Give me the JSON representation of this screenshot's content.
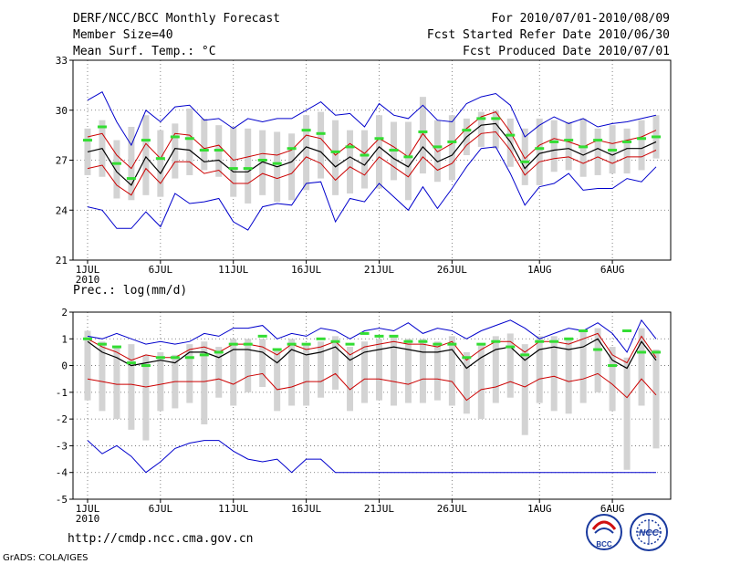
{
  "header": {
    "title": "DERF/NCC/BCC Monthly Forecast",
    "member_size": "Member Size=40",
    "variable": "Mean Surf. Temp.: °C",
    "period": "For 2010/07/01-2010/08/09",
    "started": "Fcst Started Refer Date 2010/06/30",
    "produced": "Fcst Produced Date 2010/07/01"
  },
  "footer": {
    "url": "http://cmdp.ncc.cma.gov.cn",
    "grads": "GrADS: COLA/IGES",
    "logo_bcc": "BCC",
    "logo_ncc": "NCC"
  },
  "colors": {
    "spread_max_min": "#0000cc",
    "spread_sd": "#cc0000",
    "mean": "#000000",
    "box": "#d3d3d3",
    "climate": "#33dd33",
    "grid": "#666666"
  },
  "chart_data": [
    {
      "type": "line",
      "panel": "temperature",
      "title": "Mean Surf. Temp.: °C",
      "x": [
        1,
        2,
        3,
        4,
        5,
        6,
        7,
        8,
        9,
        10,
        11,
        12,
        13,
        14,
        15,
        16,
        17,
        18,
        19,
        20,
        21,
        22,
        23,
        24,
        25,
        26,
        27,
        28,
        29,
        30,
        31,
        32,
        33,
        34,
        35,
        36,
        37,
        38,
        39,
        40
      ],
      "xtick_days": [
        1,
        6,
        11,
        16,
        21,
        26,
        32,
        37
      ],
      "xtick_labels": [
        "1JUL",
        "6JUL",
        "11JUL",
        "16JUL",
        "21JUL",
        "26JUL",
        "1AUG",
        "6AUG"
      ],
      "xlabel_year": "2010",
      "ylim": [
        21,
        33
      ],
      "yticks": [
        21,
        24,
        27,
        30,
        33
      ],
      "ytick_labels": [
        "21",
        "24",
        "27",
        "30",
        "33"
      ],
      "series": [
        {
          "name": "max",
          "values": [
            30.6,
            31.1,
            29.3,
            27.9,
            30.0,
            29.3,
            30.2,
            30.3,
            29.4,
            29.5,
            28.9,
            29.5,
            29.3,
            29.5,
            29.5,
            30.0,
            30.5,
            29.7,
            29.8,
            29.0,
            30.4,
            29.7,
            29.5,
            30.3,
            29.4,
            29.3,
            30.4,
            30.8,
            31.0,
            30.3,
            28.4,
            29.1,
            29.6,
            29.2,
            29.5,
            29.0,
            29.2,
            29.3,
            29.5,
            29.7
          ]
        },
        {
          "name": "mean_plus_sd",
          "values": [
            28.4,
            28.6,
            27.3,
            26.5,
            28.0,
            27.1,
            28.6,
            28.5,
            27.7,
            27.9,
            27.0,
            27.2,
            27.4,
            27.3,
            27.6,
            28.5,
            28.3,
            27.3,
            28.0,
            27.4,
            28.3,
            27.8,
            27.2,
            28.6,
            27.5,
            28.0,
            28.9,
            29.6,
            29.9,
            28.7,
            27.1,
            27.9,
            28.3,
            28.1,
            27.8,
            28.2,
            28.0,
            28.2,
            28.4,
            28.8
          ]
        },
        {
          "name": "mean",
          "values": [
            27.5,
            27.7,
            26.3,
            25.5,
            27.2,
            26.2,
            27.7,
            27.6,
            26.9,
            27.0,
            26.3,
            26.3,
            26.9,
            26.6,
            26.9,
            27.8,
            27.5,
            26.6,
            27.2,
            26.7,
            27.8,
            27.1,
            26.6,
            27.8,
            26.9,
            27.3,
            28.4,
            29.1,
            29.2,
            28.1,
            26.5,
            27.4,
            27.6,
            27.7,
            27.3,
            27.7,
            27.3,
            27.7,
            27.7,
            28.1
          ]
        },
        {
          "name": "mean_minus_sd",
          "values": [
            26.5,
            26.7,
            25.5,
            24.9,
            26.5,
            25.6,
            26.9,
            26.9,
            26.2,
            26.4,
            25.6,
            25.6,
            26.2,
            25.9,
            26.2,
            27.2,
            26.8,
            25.8,
            26.6,
            26.1,
            27.2,
            26.6,
            26.0,
            27.2,
            26.4,
            26.8,
            27.9,
            28.6,
            28.7,
            27.6,
            26.1,
            26.9,
            27.1,
            27.2,
            26.8,
            27.2,
            26.8,
            27.2,
            27.2,
            27.6
          ]
        },
        {
          "name": "min",
          "values": [
            24.2,
            24.0,
            22.9,
            22.9,
            23.9,
            23.0,
            25.0,
            24.4,
            24.5,
            24.7,
            23.3,
            22.8,
            24.2,
            24.4,
            24.3,
            25.6,
            25.7,
            23.3,
            24.7,
            24.5,
            25.6,
            24.8,
            24.0,
            25.4,
            24.1,
            25.3,
            26.6,
            27.7,
            27.8,
            26.2,
            24.3,
            25.4,
            25.6,
            26.2,
            25.2,
            25.3,
            25.3,
            25.9,
            25.7,
            26.6
          ]
        },
        {
          "name": "box_high",
          "values": [
            28.9,
            29.4,
            28.2,
            29.0,
            29.7,
            28.8,
            29.2,
            30.1,
            29.5,
            29.1,
            29.0,
            28.9,
            28.8,
            28.7,
            28.6,
            29.7,
            29.9,
            29.4,
            28.8,
            28.8,
            29.7,
            29.3,
            29.3,
            30.8,
            29.4,
            29.7,
            29.5,
            29.9,
            30.0,
            29.5,
            28.9,
            29.5,
            29.4,
            29.3,
            29.5,
            28.9,
            29.1,
            28.9,
            29.4,
            29.7
          ]
        },
        {
          "name": "box_low",
          "values": [
            26.1,
            26.0,
            24.7,
            24.6,
            24.9,
            24.8,
            25.9,
            26.1,
            26.4,
            26.0,
            24.8,
            24.4,
            24.9,
            24.5,
            24.6,
            25.2,
            25.9,
            24.9,
            25.0,
            25.3,
            25.3,
            25.8,
            24.6,
            26.2,
            25.7,
            25.8,
            27.3,
            27.8,
            27.7,
            26.6,
            25.5,
            25.5,
            26.3,
            26.4,
            26.0,
            26.1,
            26.2,
            26.2,
            26.4,
            27.1
          ]
        },
        {
          "name": "climate",
          "values": [
            28.2,
            29.0,
            26.8,
            25.9,
            28.2,
            27.1,
            28.4,
            28.3,
            27.6,
            27.6,
            26.5,
            26.5,
            27.0,
            26.8,
            27.7,
            28.8,
            28.6,
            27.5,
            27.8,
            27.3,
            28.3,
            27.6,
            27.2,
            28.7,
            27.8,
            28.1,
            28.8,
            29.5,
            29.5,
            28.5,
            26.9,
            27.7,
            28.1,
            28.2,
            27.8,
            28.2,
            27.6,
            28.1,
            28.3,
            28.4
          ]
        }
      ]
    },
    {
      "type": "line",
      "panel": "precipitation",
      "title": "Prec.: log(mm/d)",
      "x": [
        1,
        2,
        3,
        4,
        5,
        6,
        7,
        8,
        9,
        10,
        11,
        12,
        13,
        14,
        15,
        16,
        17,
        18,
        19,
        20,
        21,
        22,
        23,
        24,
        25,
        26,
        27,
        28,
        29,
        30,
        31,
        32,
        33,
        34,
        35,
        36,
        37,
        38,
        39,
        40
      ],
      "xtick_days": [
        1,
        6,
        11,
        16,
        21,
        26,
        32,
        37
      ],
      "xtick_labels": [
        "1JUL",
        "6JUL",
        "11JUL",
        "16JUL",
        "21JUL",
        "26JUL",
        "1AUG",
        "6AUG"
      ],
      "xlabel_year": "2010",
      "ylim": [
        -5,
        2
      ],
      "yticks": [
        -5,
        -4,
        -3,
        -2,
        -1,
        0,
        1,
        2
      ],
      "ytick_labels": [
        "-5",
        "-4",
        "-3",
        "-2",
        "-1",
        "0",
        "1",
        "2"
      ],
      "series": [
        {
          "name": "max",
          "values": [
            1.1,
            1.0,
            1.2,
            1.0,
            0.8,
            0.9,
            0.8,
            0.9,
            1.2,
            1.1,
            1.4,
            1.4,
            1.5,
            1.0,
            1.2,
            1.1,
            1.4,
            1.3,
            1.0,
            1.3,
            1.4,
            1.3,
            1.6,
            1.2,
            1.4,
            1.3,
            1.0,
            1.3,
            1.5,
            1.7,
            1.4,
            1.0,
            1.2,
            1.4,
            1.3,
            1.6,
            1.2,
            0.5,
            1.7,
            1.0
          ]
        },
        {
          "name": "mean_plus_sd",
          "values": [
            1.0,
            0.7,
            0.5,
            0.2,
            0.4,
            0.3,
            0.3,
            0.6,
            0.7,
            0.5,
            0.8,
            0.8,
            0.7,
            0.4,
            0.8,
            0.6,
            0.7,
            0.9,
            0.4,
            0.7,
            0.8,
            0.9,
            0.8,
            0.8,
            0.7,
            0.9,
            0.2,
            0.6,
            0.9,
            0.9,
            0.5,
            0.9,
            0.9,
            0.8,
            1.0,
            1.2,
            0.4,
            0.1,
            1.1,
            0.3
          ]
        },
        {
          "name": "mean",
          "values": [
            0.9,
            0.5,
            0.3,
            0.0,
            0.1,
            0.2,
            0.1,
            0.5,
            0.5,
            0.3,
            0.6,
            0.6,
            0.5,
            0.1,
            0.6,
            0.4,
            0.5,
            0.7,
            0.2,
            0.5,
            0.6,
            0.7,
            0.6,
            0.5,
            0.5,
            0.6,
            -0.1,
            0.3,
            0.6,
            0.7,
            0.2,
            0.6,
            0.7,
            0.6,
            0.7,
            1.0,
            0.2,
            -0.1,
            0.9,
            0.2
          ]
        },
        {
          "name": "mean_minus_sd",
          "values": [
            -0.5,
            -0.6,
            -0.7,
            -0.7,
            -0.8,
            -0.7,
            -0.6,
            -0.6,
            -0.6,
            -0.5,
            -0.7,
            -0.4,
            -0.3,
            -0.9,
            -0.8,
            -0.6,
            -0.6,
            -0.3,
            -0.9,
            -0.5,
            -0.5,
            -0.6,
            -0.7,
            -0.5,
            -0.5,
            -0.6,
            -1.3,
            -0.9,
            -0.8,
            -0.6,
            -0.8,
            -0.5,
            -0.4,
            -0.6,
            -0.5,
            -0.3,
            -0.7,
            -1.2,
            -0.5,
            -1.1
          ]
        },
        {
          "name": "min",
          "values": [
            -2.8,
            -3.3,
            -3.0,
            -3.4,
            -4.0,
            -3.6,
            -3.1,
            -2.9,
            -2.8,
            -2.8,
            -3.2,
            -3.5,
            -3.6,
            -3.5,
            -4.0,
            -3.5,
            -3.5,
            -4.0,
            -4.0,
            -4.0,
            -4.0,
            -4.0,
            -4.0,
            -4.0,
            -4.0,
            -4.0,
            -4.0,
            -4.0,
            -4.0,
            -4.0,
            -4.0,
            -4.0,
            -4.0,
            -4.0,
            -4.0,
            -4.0,
            -4.0,
            -4.0,
            -4.0,
            -4.0
          ]
        },
        {
          "name": "box_high",
          "values": [
            1.3,
            0.9,
            0.7,
            0.8,
            0.4,
            0.5,
            0.4,
            0.8,
            0.9,
            0.7,
            1.0,
            1.0,
            1.0,
            0.6,
            1.0,
            0.8,
            0.9,
            1.1,
            0.7,
            0.9,
            1.0,
            1.1,
            1.0,
            1.0,
            0.9,
            1.1,
            0.5,
            0.8,
            1.1,
            1.2,
            0.8,
            1.1,
            1.1,
            1.0,
            1.3,
            1.4,
            0.7,
            0.3,
            1.4,
            0.6
          ]
        },
        {
          "name": "box_low",
          "values": [
            -1.3,
            -1.7,
            -2.0,
            -2.4,
            -2.8,
            -1.7,
            -1.6,
            -1.4,
            -2.2,
            -1.2,
            -1.5,
            -1.0,
            -0.8,
            -1.7,
            -1.5,
            -1.5,
            -1.2,
            -0.9,
            -1.7,
            -1.4,
            -1.3,
            -1.5,
            -1.4,
            -1.4,
            -1.3,
            -1.5,
            -1.8,
            -2.0,
            -1.4,
            -1.2,
            -2.6,
            -1.4,
            -1.7,
            -1.8,
            -1.4,
            -1.0,
            -1.7,
            -3.9,
            -1.5,
            -3.1
          ]
        },
        {
          "name": "climate",
          "values": [
            1.0,
            0.8,
            0.7,
            0.1,
            0.0,
            0.3,
            0.3,
            0.3,
            0.4,
            0.5,
            0.8,
            0.8,
            1.1,
            0.6,
            0.8,
            0.8,
            1.0,
            0.9,
            0.8,
            1.2,
            1.1,
            1.1,
            0.9,
            0.9,
            0.8,
            0.8,
            0.3,
            0.8,
            0.9,
            0.7,
            0.4,
            0.9,
            0.9,
            1.0,
            1.3,
            0.6,
            0.0,
            1.3,
            0.5,
            0.5
          ]
        }
      ]
    }
  ]
}
